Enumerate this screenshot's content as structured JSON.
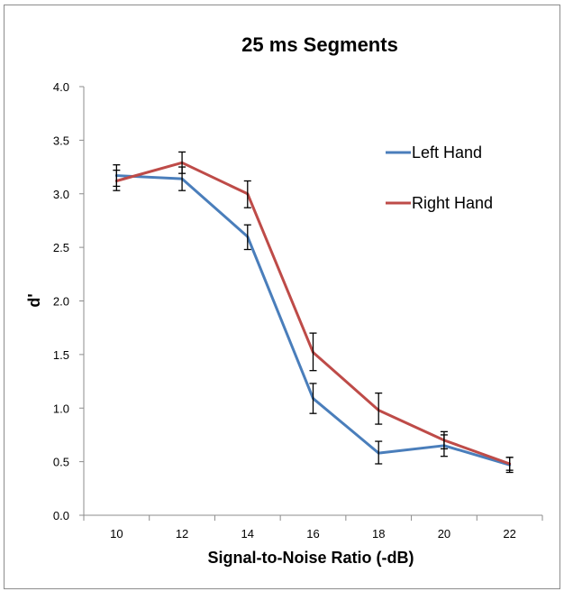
{
  "chart_data": {
    "type": "line",
    "title": "25 ms Segments",
    "xlabel": "Signal-to-Noise Ratio (-dB)",
    "ylabel": "d'",
    "x": [
      10,
      12,
      14,
      16,
      18,
      20,
      22
    ],
    "xticks": [
      "10",
      "12",
      "14",
      "16",
      "18",
      "20",
      "22"
    ],
    "ylim": [
      0,
      4
    ],
    "yticks": [
      "0.0",
      "0.5",
      "1.0",
      "1.5",
      "2.0",
      "2.5",
      "3.0",
      "3.5",
      "4.0"
    ],
    "grid": false,
    "legend_position": "top-right",
    "series": [
      {
        "name": "Left Hand",
        "color": "#4a7ebb",
        "values": [
          3.17,
          3.14,
          2.6,
          1.09,
          0.58,
          0.65,
          0.47
        ],
        "err_low": [
          3.07,
          3.03,
          2.48,
          0.95,
          0.48,
          0.55,
          0.4
        ],
        "err_high": [
          3.27,
          3.25,
          2.71,
          1.23,
          0.69,
          0.75,
          0.54
        ]
      },
      {
        "name": "Right Hand",
        "color": "#be4b48",
        "values": [
          3.12,
          3.29,
          3.0,
          1.52,
          0.98,
          0.7,
          0.48
        ],
        "err_low": [
          3.03,
          3.19,
          2.87,
          1.35,
          0.85,
          0.62,
          0.42
        ],
        "err_high": [
          3.22,
          3.39,
          3.12,
          1.7,
          1.14,
          0.78,
          0.54
        ]
      }
    ]
  }
}
